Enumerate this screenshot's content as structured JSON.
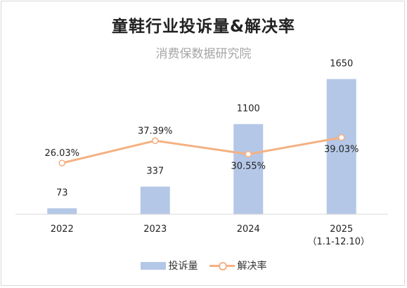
{
  "title": "童鞋行业投诉量&解决率",
  "subtitle": "消费保数据研究院",
  "colors": {
    "bar": "#b4c7e7",
    "line": "#f4b183",
    "axis": "#d9d9d9"
  },
  "chart_data": {
    "type": "bar",
    "categories": [
      "2022",
      "2023",
      "2024",
      "2025"
    ],
    "category_notes": [
      "",
      "",
      "",
      "（1.1-12.10）"
    ],
    "series": [
      {
        "name": "投诉量",
        "type": "bar",
        "values": [
          73,
          337,
          1100,
          1650
        ],
        "labels": [
          "73",
          "337",
          "1100",
          "1650"
        ]
      },
      {
        "name": "解决率",
        "type": "line",
        "values": [
          26.03,
          37.39,
          30.55,
          39.03
        ],
        "labels": [
          "26.03%",
          "37.39%",
          "30.55%",
          "39.03%"
        ]
      }
    ],
    "ylim": [
      0,
      1800
    ],
    "y2lim": [
      0,
      75
    ],
    "grid": false,
    "legend": "bottom"
  }
}
